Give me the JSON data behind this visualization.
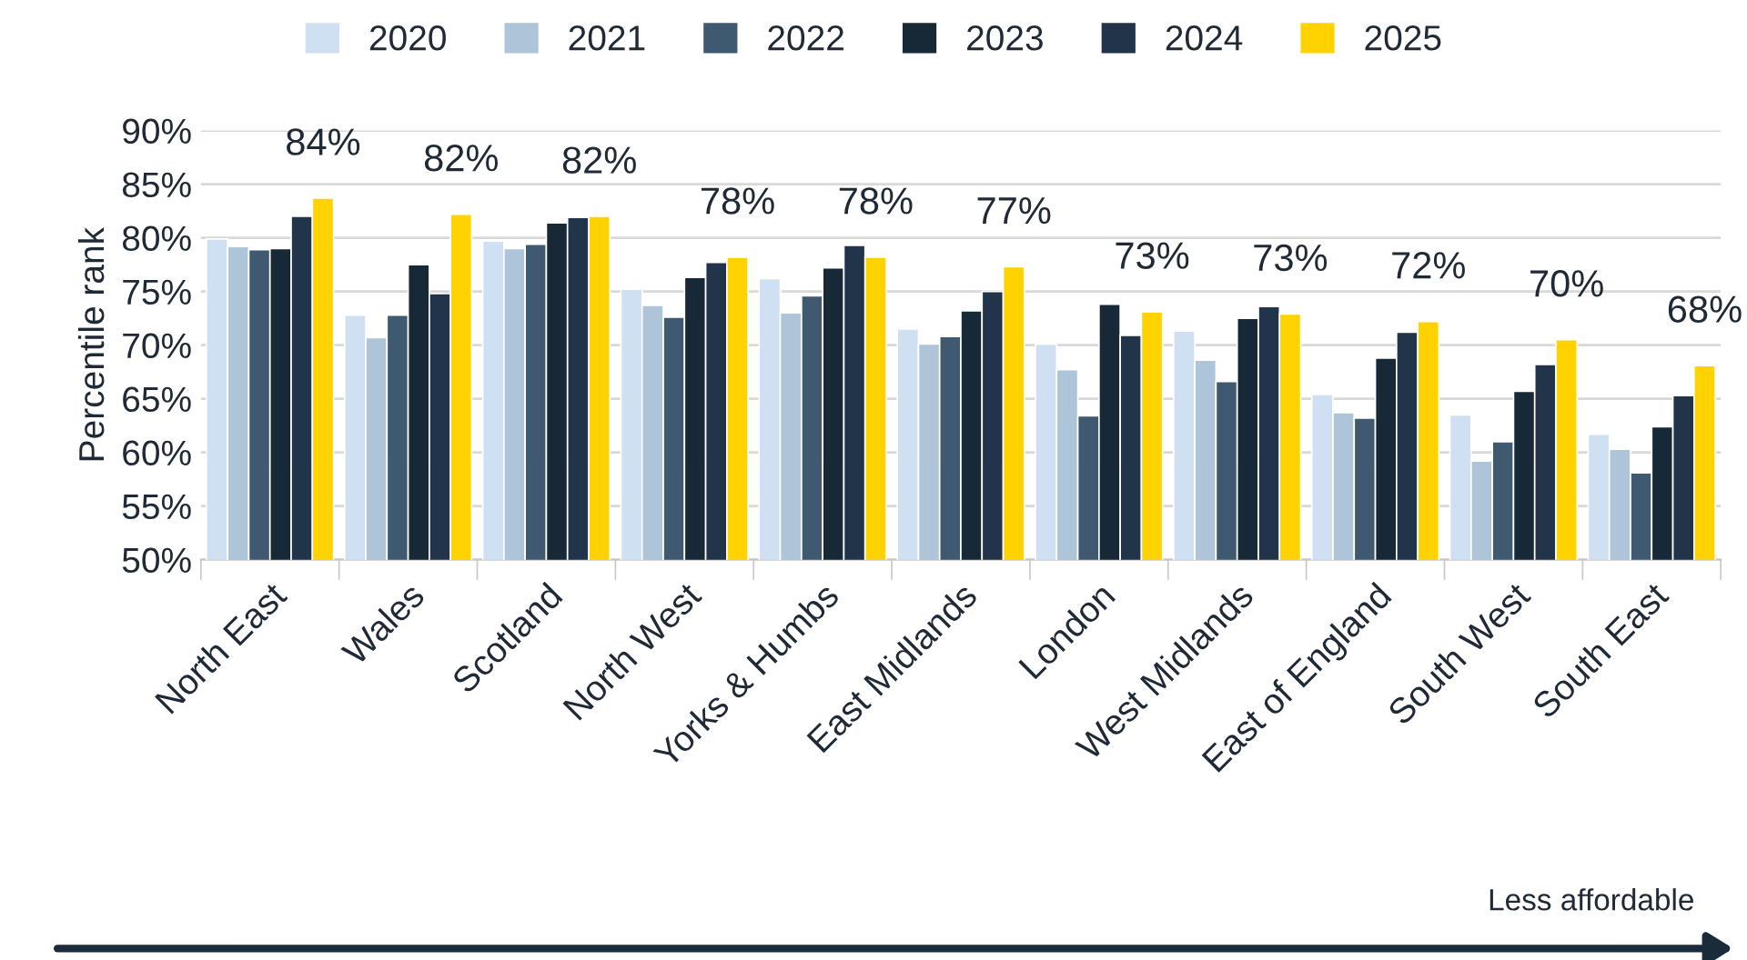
{
  "chart_data": {
    "type": "bar",
    "ylabel": "Percentile rank",
    "categories": [
      "North East",
      "Wales",
      "Scotland",
      "North West",
      "Yorks & Humbs",
      "East Midlands",
      "London",
      "West Midlands",
      "East of England",
      "South West",
      "South East"
    ],
    "series": [
      {
        "name": "2020",
        "color": "#cfe0f3",
        "values": [
          79.9,
          72.8,
          79.7,
          75.2,
          76.2,
          71.5,
          70.1,
          71.3,
          65.4,
          63.5,
          61.7
        ]
      },
      {
        "name": "2021",
        "color": "#adc4d9",
        "values": [
          79.2,
          70.7,
          79.0,
          73.7,
          73.0,
          70.1,
          67.7,
          68.6,
          63.7,
          59.2,
          60.3
        ]
      },
      {
        "name": "2022",
        "color": "#3f5a70",
        "values": [
          78.9,
          72.8,
          79.4,
          72.6,
          74.6,
          70.8,
          63.4,
          66.6,
          63.2,
          61.0,
          58.1
        ]
      },
      {
        "name": "2023",
        "color": "#172836",
        "values": [
          79.0,
          77.5,
          81.4,
          76.3,
          77.2,
          73.2,
          73.8,
          72.5,
          68.8,
          65.7,
          62.4
        ]
      },
      {
        "name": "2024",
        "color": "#213449",
        "values": [
          82.0,
          74.8,
          81.9,
          77.7,
          79.3,
          75.0,
          70.9,
          73.6,
          71.2,
          68.2,
          65.3
        ]
      },
      {
        "name": "2025",
        "color": "#ffd200",
        "values": [
          83.7,
          82.2,
          82.0,
          78.2,
          78.2,
          77.3,
          73.1,
          72.9,
          72.2,
          70.5,
          68.1
        ],
        "value_labels": [
          "84%",
          "82%",
          "82%",
          "78%",
          "78%",
          "77%",
          "73%",
          "73%",
          "72%",
          "70%",
          "68%"
        ]
      }
    ],
    "ylim": [
      50,
      90
    ],
    "yticks": [
      {
        "value": 50,
        "label": "50%"
      },
      {
        "value": 55,
        "label": "55%"
      },
      {
        "value": 60,
        "label": "60%"
      },
      {
        "value": 65,
        "label": "65%"
      },
      {
        "value": 70,
        "label": "70%"
      },
      {
        "value": 75,
        "label": "75%"
      },
      {
        "value": 80,
        "label": "80%"
      },
      {
        "value": 85,
        "label": "85%"
      },
      {
        "value": 90,
        "label": "90%"
      }
    ],
    "grid": "y",
    "legend": "top",
    "annotations": [
      "Less affordable"
    ]
  }
}
